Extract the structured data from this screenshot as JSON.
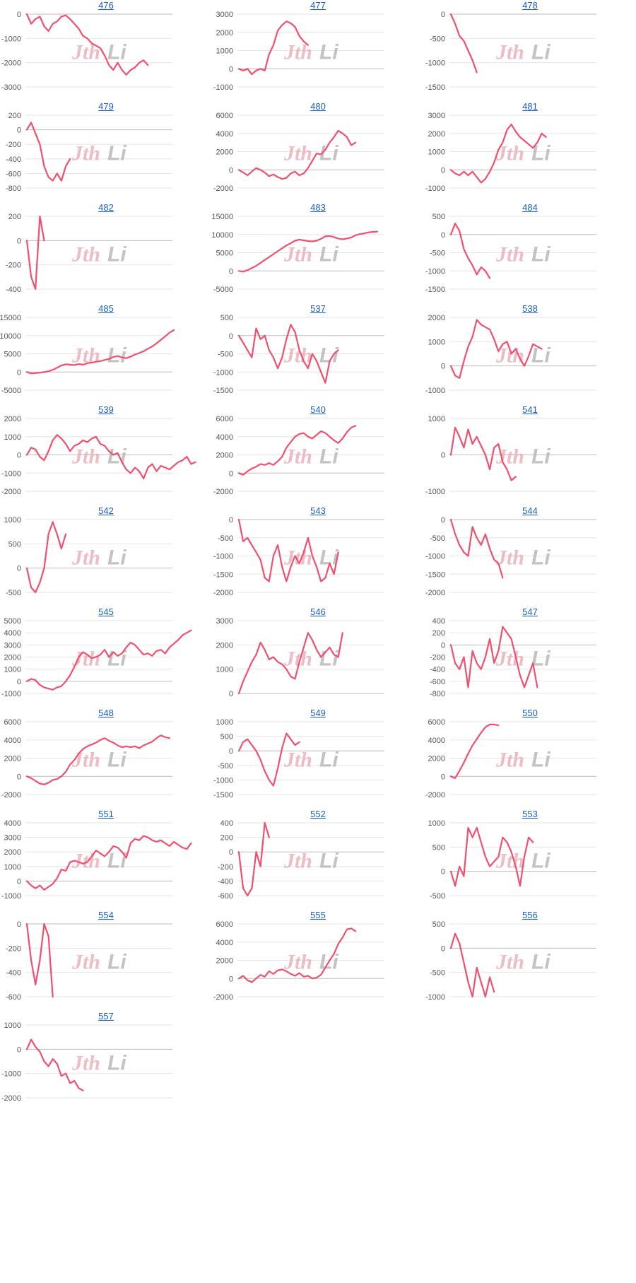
{
  "line_color": "#f0506e",
  "watermark": {
    "left": "Jth",
    "right": "Li"
  },
  "chart_data": [
    {
      "type": "line",
      "title": "476",
      "yticks": [
        0,
        -1000,
        -2000,
        -3000
      ],
      "ylim": [
        -3000,
        0
      ],
      "values": [
        0,
        -400,
        -200,
        -100,
        -500,
        -700,
        -400,
        -300,
        -100,
        -50,
        -200,
        -400,
        -600,
        -900,
        -1000,
        -1200,
        -1300,
        -1400,
        -1700,
        -2100,
        -2300,
        -2000,
        -2300,
        -2500,
        -2300,
        -2200,
        -2000,
        -1900,
        -2100
      ]
    },
    {
      "type": "line",
      "title": "477",
      "yticks": [
        3000,
        2000,
        1000,
        0,
        -1000
      ],
      "ylim": [
        -1000,
        3000
      ],
      "values": [
        0,
        -100,
        0,
        -300,
        -100,
        0,
        -100,
        800,
        1300,
        2100,
        2400,
        2600,
        2500,
        2300,
        1800,
        1500,
        1300
      ]
    },
    {
      "type": "line",
      "title": "478",
      "yticks": [
        0,
        -500,
        -1000,
        -1500
      ],
      "ylim": [
        -1500,
        0
      ],
      "values": [
        0,
        -200,
        -450,
        -550,
        -750,
        -950,
        -1200
      ]
    },
    {
      "type": "line",
      "title": "479",
      "yticks": [
        200,
        0,
        -200,
        -400,
        -600,
        -800
      ],
      "ylim": [
        -800,
        200
      ],
      "values": [
        0,
        100,
        -50,
        -200,
        -500,
        -650,
        -700,
        -600,
        -700,
        -500,
        -400
      ]
    },
    {
      "type": "line",
      "title": "480",
      "yticks": [
        6000,
        4000,
        2000,
        0,
        -2000
      ],
      "ylim": [
        -2000,
        6000
      ],
      "values": [
        0,
        -300,
        -600,
        -200,
        200,
        0,
        -300,
        -700,
        -500,
        -800,
        -1000,
        -900,
        -400,
        -200,
        -600,
        -400,
        200,
        1000,
        1800,
        1700,
        2200,
        3000,
        3600,
        4300,
        4000,
        3600,
        2700,
        3000
      ]
    },
    {
      "type": "line",
      "title": "481",
      "yticks": [
        3000,
        2000,
        1000,
        0,
        -1000
      ],
      "ylim": [
        -1000,
        3000
      ],
      "values": [
        0,
        -200,
        -300,
        -100,
        -300,
        -100,
        -400,
        -700,
        -500,
        -100,
        400,
        1100,
        1500,
        2200,
        2500,
        2100,
        1800,
        1600,
        1400,
        1200,
        1500,
        2000,
        1800
      ]
    },
    {
      "type": "line",
      "title": "482",
      "yticks": [
        200,
        0,
        -200,
        -400
      ],
      "ylim": [
        -400,
        200
      ],
      "values": [
        0,
        -300,
        -400,
        200,
        0
      ]
    },
    {
      "type": "line",
      "title": "483",
      "yticks": [
        15000,
        10000,
        5000,
        0,
        -5000
      ],
      "ylim": [
        -5000,
        15000
      ],
      "values": [
        0,
        -200,
        200,
        800,
        1400,
        2200,
        3000,
        3800,
        4600,
        5400,
        6200,
        7000,
        7600,
        8300,
        8600,
        8400,
        8200,
        8100,
        8300,
        8800,
        9500,
        9600,
        9300,
        8900,
        8700,
        8900,
        9200,
        9800,
        10100,
        10300,
        10600,
        10700,
        10800
      ]
    },
    {
      "type": "line",
      "title": "484",
      "yticks": [
        500,
        0,
        -500,
        -1000,
        -1500
      ],
      "ylim": [
        -1500,
        500
      ],
      "values": [
        0,
        300,
        100,
        -400,
        -650,
        -850,
        -1100,
        -900,
        -1000,
        -1200
      ]
    },
    {
      "type": "line",
      "title": "485",
      "yticks": [
        15000,
        10000,
        5000,
        0,
        -5000
      ],
      "ylim": [
        -5000,
        15000
      ],
      "values": [
        0,
        -400,
        -300,
        -200,
        0,
        200,
        600,
        1200,
        1800,
        2100,
        2000,
        1900,
        2200,
        2000,
        2400,
        2600,
        2800,
        3000,
        3300,
        3600,
        4100,
        4400,
        4000,
        3800,
        4200,
        4800,
        5200,
        5700,
        6400,
        7000,
        7900,
        8800,
        9800,
        10800,
        11500
      ]
    },
    {
      "type": "line",
      "title": "537",
      "yticks": [
        500,
        0,
        -500,
        -1000,
        -1500
      ],
      "ylim": [
        -1500,
        500
      ],
      "values": [
        0,
        -200,
        -400,
        -600,
        200,
        -100,
        0,
        -400,
        -600,
        -900,
        -600,
        -100,
        300,
        100,
        -400,
        -700,
        -900,
        -500,
        -700,
        -1000,
        -1300,
        -700,
        -500,
        -400
      ]
    },
    {
      "type": "line",
      "title": "538",
      "yticks": [
        2000,
        1000,
        0,
        -1000
      ],
      "ylim": [
        -1000,
        2000
      ],
      "values": [
        0,
        -400,
        -500,
        200,
        800,
        1200,
        1900,
        1700,
        1600,
        1500,
        1100,
        600,
        900,
        1000,
        500,
        700,
        300,
        0,
        400,
        900,
        800,
        700
      ]
    },
    {
      "type": "line",
      "title": "539",
      "yticks": [
        2000,
        1000,
        0,
        -1000,
        -2000
      ],
      "ylim": [
        -2000,
        2000
      ],
      "values": [
        0,
        400,
        300,
        -100,
        -300,
        200,
        800,
        1100,
        900,
        600,
        200,
        500,
        600,
        800,
        700,
        900,
        1000,
        600,
        500,
        200,
        0,
        100,
        -400,
        -800,
        -1000,
        -700,
        -900,
        -1300,
        -700,
        -500,
        -900,
        -600,
        -700,
        -800,
        -600,
        -400,
        -300,
        -100,
        -500,
        -400
      ]
    },
    {
      "type": "line",
      "title": "540",
      "yticks": [
        6000,
        4000,
        2000,
        0,
        -2000
      ],
      "ylim": [
        -2000,
        6000
      ],
      "values": [
        0,
        -200,
        200,
        500,
        700,
        1000,
        900,
        1100,
        900,
        1300,
        1800,
        2800,
        3400,
        4000,
        4300,
        4400,
        4000,
        3800,
        4200,
        4600,
        4400,
        4000,
        3600,
        3300,
        3800,
        4500,
        5000,
        5200
      ]
    },
    {
      "type": "line",
      "title": "541",
      "yticks": [
        1000,
        0,
        -1000
      ],
      "ylim": [
        -1000,
        1000
      ],
      "values": [
        0,
        750,
        500,
        200,
        700,
        300,
        500,
        250,
        0,
        -400,
        200,
        300,
        -200,
        -400,
        -700,
        -600
      ]
    },
    {
      "type": "line",
      "title": "542",
      "yticks": [
        1000,
        500,
        0,
        -500
      ],
      "ylim": [
        -500,
        1000
      ],
      "values": [
        0,
        -400,
        -500,
        -300,
        0,
        700,
        950,
        700,
        400,
        700
      ]
    },
    {
      "type": "line",
      "title": "543",
      "yticks": [
        0,
        -500,
        -1000,
        -1500,
        -2000
      ],
      "ylim": [
        -2000,
        0
      ],
      "values": [
        0,
        -600,
        -500,
        -700,
        -900,
        -1100,
        -1600,
        -1700,
        -1000,
        -700,
        -1300,
        -1700,
        -1300,
        -1000,
        -1200,
        -900,
        -500,
        -1000,
        -1300,
        -1700,
        -1600,
        -1200,
        -1500,
        -900
      ]
    },
    {
      "type": "line",
      "title": "544",
      "yticks": [
        0,
        -500,
        -1000,
        -1500,
        -2000
      ],
      "ylim": [
        -2000,
        0
      ],
      "values": [
        0,
        -400,
        -700,
        -900,
        -1000,
        -200,
        -500,
        -700,
        -400,
        -800,
        -1100,
        -1200,
        -1600
      ]
    },
    {
      "type": "line",
      "title": "545",
      "yticks": [
        5000,
        4000,
        3000,
        2000,
        1000,
        0,
        -1000
      ],
      "ylim": [
        -1000,
        5000
      ],
      "values": [
        0,
        200,
        100,
        -300,
        -500,
        -600,
        -700,
        -500,
        -400,
        0,
        500,
        1200,
        2000,
        2400,
        2200,
        1900,
        2000,
        2200,
        2600,
        2000,
        2400,
        2100,
        2300,
        2800,
        3200,
        3000,
        2600,
        2200,
        2300,
        2100,
        2500,
        2600,
        2300,
        2800,
        3100,
        3400,
        3800,
        4000,
        4200
      ]
    },
    {
      "type": "line",
      "title": "546",
      "yticks": [
        3000,
        2000,
        1000,
        0
      ],
      "ylim": [
        0,
        3000
      ],
      "values": [
        0,
        500,
        900,
        1300,
        1600,
        2100,
        1800,
        1400,
        1500,
        1300,
        1200,
        1000,
        700,
        600,
        1300,
        1900,
        2500,
        2200,
        1800,
        1500,
        1700,
        1900,
        1600,
        1500,
        2500
      ]
    },
    {
      "type": "line",
      "title": "547",
      "yticks": [
        400,
        200,
        0,
        -200,
        -400,
        -600,
        -800
      ],
      "ylim": [
        -800,
        400
      ],
      "values": [
        0,
        -300,
        -400,
        -200,
        -700,
        -100,
        -300,
        -400,
        -200,
        100,
        -300,
        -100,
        300,
        200,
        100,
        -200,
        -500,
        -700,
        -500,
        -300,
        -700
      ]
    },
    {
      "type": "line",
      "title": "548",
      "yticks": [
        6000,
        4000,
        2000,
        0,
        -2000
      ],
      "ylim": [
        -2000,
        6000
      ],
      "values": [
        0,
        -200,
        -500,
        -800,
        -900,
        -700,
        -400,
        -300,
        0,
        500,
        1300,
        1800,
        2500,
        3000,
        3300,
        3500,
        3700,
        4000,
        4200,
        3900,
        3700,
        3400,
        3200,
        3300,
        3200,
        3300,
        3100,
        3400,
        3600,
        3800,
        4200,
        4500,
        4300,
        4200
      ]
    },
    {
      "type": "line",
      "title": "549",
      "yticks": [
        1000,
        500,
        0,
        -500,
        -1000,
        -1500
      ],
      "ylim": [
        -1500,
        1000
      ],
      "values": [
        0,
        300,
        400,
        200,
        0,
        -300,
        -700,
        -1000,
        -1200,
        -600,
        100,
        600,
        400,
        200,
        300
      ]
    },
    {
      "type": "line",
      "title": "550",
      "yticks": [
        6000,
        4000,
        2000,
        0,
        -2000
      ],
      "ylim": [
        -2000,
        6000
      ],
      "values": [
        0,
        -200,
        600,
        1500,
        2500,
        3400,
        4100,
        4800,
        5400,
        5700,
        5700,
        5600
      ]
    },
    {
      "type": "line",
      "title": "551",
      "yticks": [
        4000,
        3000,
        2000,
        1000,
        0,
        -1000
      ],
      "ylim": [
        -1000,
        4000
      ],
      "values": [
        0,
        -300,
        -500,
        -300,
        -600,
        -400,
        -200,
        200,
        800,
        700,
        1300,
        1400,
        1300,
        1200,
        1300,
        1700,
        2100,
        1900,
        1700,
        2000,
        2400,
        2300,
        2000,
        1600,
        2600,
        2900,
        2800,
        3100,
        3000,
        2800,
        2700,
        2800,
        2600,
        2400,
        2700,
        2500,
        2300,
        2200,
        2600
      ]
    },
    {
      "type": "line",
      "title": "552",
      "yticks": [
        400,
        200,
        0,
        -200,
        -400,
        -600
      ],
      "ylim": [
        -600,
        400
      ],
      "values": [
        0,
        -500,
        -600,
        -500,
        0,
        -200,
        400,
        200
      ]
    },
    {
      "type": "line",
      "title": "553",
      "yticks": [
        1000,
        500,
        0,
        -500
      ],
      "ylim": [
        -500,
        1000
      ],
      "values": [
        0,
        -300,
        100,
        -100,
        900,
        700,
        900,
        600,
        300,
        100,
        200,
        300,
        700,
        600,
        400,
        100,
        -300,
        300,
        700,
        600
      ]
    },
    {
      "type": "line",
      "title": "554",
      "yticks": [
        0,
        -200,
        -400,
        -600
      ],
      "ylim": [
        -600,
        0
      ],
      "values": [
        0,
        -300,
        -500,
        -300,
        0,
        -100,
        -600
      ]
    },
    {
      "type": "line",
      "title": "555",
      "yticks": [
        6000,
        4000,
        2000,
        0,
        -2000
      ],
      "ylim": [
        -2000,
        6000
      ],
      "values": [
        0,
        300,
        -200,
        -400,
        0,
        400,
        200,
        800,
        500,
        900,
        1000,
        800,
        500,
        300,
        600,
        200,
        300,
        0,
        100,
        400,
        1200,
        2000,
        2700,
        3800,
        4500,
        5400,
        5500,
        5200
      ]
    },
    {
      "type": "line",
      "title": "556",
      "yticks": [
        500,
        0,
        -500,
        -1000
      ],
      "ylim": [
        -1000,
        500
      ],
      "values": [
        0,
        300,
        100,
        -300,
        -700,
        -1000,
        -400,
        -700,
        -1000,
        -600,
        -900
      ]
    },
    {
      "type": "line",
      "title": "557",
      "yticks": [
        1000,
        0,
        -1000,
        -2000
      ],
      "ylim": [
        -2000,
        1000
      ],
      "values": [
        0,
        400,
        100,
        -100,
        -500,
        -700,
        -400,
        -600,
        -1100,
        -1000,
        -1400,
        -1300,
        -1600,
        -1700
      ]
    }
  ]
}
